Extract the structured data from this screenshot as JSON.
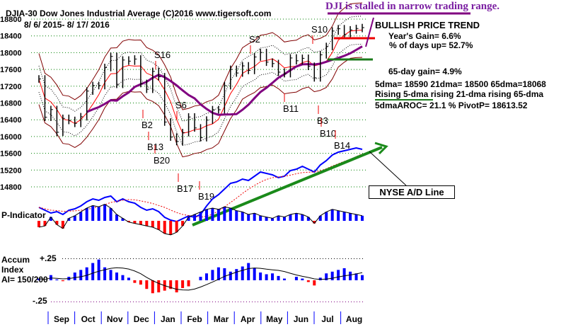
{
  "header": {
    "title": "DJIA-30  Dow Jones Industrial Average   (C)2016 www.tigersoft.com",
    "date_range": "8/ 6/ 2015- 8/ 17/ 2016",
    "headline": "DJI is stalled in narrow trading range."
  },
  "info": {
    "trend": "BULLISH PRICE TREND",
    "year_gain": "Year's Gain= 6.6%",
    "days_up": "% of days up= 52.7%",
    "gain65": "65-day gain= 4.9%",
    "dmas": "5dma= 18590 21dma= 18500 65dma=18068",
    "rising5": "Rising 5-dma",
    "rising_rest": " rising 21-dma  rising 65-dma",
    "aroc": "5dmaAROC= 21.1 %  PivotP= 18613.52"
  },
  "ad_label": "NYSE A/D Line",
  "panels": {
    "p_indicator": "P-Indicator",
    "accum1": "Accum",
    "accum2": "Index",
    "ai": "AI= 150/200",
    "plus": "+.25",
    "minus": "-.25"
  },
  "colors": {
    "grid": "#008000",
    "bars": "#000000",
    "ma21": "#ff0000",
    "ma65": "#800080",
    "band": "#800000",
    "ad": "#0000ff",
    "pos": "#0000ff",
    "neg": "#ff0000",
    "trend": "#1a8a1a"
  },
  "chart_data": {
    "type": "line",
    "title": "DJIA-30 Dow Jones Industrial Average",
    "ylim": [
      14800,
      18800
    ],
    "yticks": [
      18800,
      18400,
      18000,
      17600,
      17200,
      16800,
      16400,
      16000,
      15600,
      15200,
      14800
    ],
    "months": [
      "Sep",
      "Oct",
      "Nov",
      "Dec",
      "Jan",
      "Feb",
      "Mar",
      "Apr",
      "May",
      "Jun",
      "Jul",
      "Aug"
    ],
    "closes": [
      17373,
      16460,
      16643,
      16102,
      16433,
      16384,
      16315,
      16472,
      17084,
      17216,
      17215,
      17646,
      17910,
      17245,
      17824,
      17798,
      17848,
      17265,
      17128,
      17553,
      17425,
      16346,
      15988,
      15882,
      16093,
      16466,
      16205,
      15973,
      16392,
      16640,
      16639,
      17213,
      17602,
      17515,
      17685,
      17577,
      17897,
      18004,
      17774,
      17740,
      17535,
      17500,
      17873,
      17807,
      17865,
      17675,
      17400,
      17949,
      18147,
      18516,
      18570,
      18432,
      18543,
      18576,
      18597
    ],
    "ad_line": [
      22,
      18,
      14,
      16,
      12,
      18,
      20,
      24,
      30,
      34,
      32,
      36,
      38,
      30,
      34,
      30,
      28,
      22,
      18,
      20,
      16,
      8,
      4,
      2,
      6,
      10,
      8,
      12,
      24,
      34,
      40,
      48,
      56,
      58,
      62,
      60,
      66,
      72,
      70,
      68,
      64,
      66,
      74,
      76,
      80,
      76,
      72,
      82,
      88,
      96,
      100,
      102,
      104,
      106,
      104
    ],
    "p_indicator": [
      -10,
      -8,
      6,
      -6,
      -12,
      4,
      8,
      14,
      20,
      24,
      22,
      26,
      20,
      10,
      4,
      -2,
      -4,
      -6,
      -8,
      -10,
      -14,
      -20,
      -22,
      -18,
      -8,
      6,
      10,
      14,
      18,
      20,
      18,
      22,
      20,
      16,
      14,
      10,
      12,
      8,
      6,
      4,
      8,
      6,
      10,
      12,
      10,
      6,
      -4,
      8,
      14,
      18,
      16,
      14,
      12,
      10,
      8
    ],
    "accum_index": [
      0.02,
      0.0,
      0.06,
      0.01,
      -0.01,
      0.04,
      0.09,
      0.12,
      0.15,
      0.2,
      0.24,
      0.15,
      0.12,
      0.09,
      0.06,
      0.03,
      -0.03,
      -0.05,
      -0.1,
      -0.15,
      -0.14,
      -0.12,
      -0.1,
      -0.14,
      -0.09,
      -0.07,
      0.0,
      0.04,
      0.08,
      0.12,
      0.15,
      0.14,
      0.1,
      0.13,
      0.16,
      0.2,
      0.14,
      0.09,
      0.07,
      0.08,
      0.05,
      0.02,
      0.0,
      0.04,
      0.02,
      -0.02,
      -0.06,
      0.03,
      0.08,
      0.1,
      0.12,
      0.14,
      0.1,
      0.08,
      0.06
    ],
    "signals": [
      "S16",
      "S2",
      "S10",
      "S6",
      "B2",
      "B13",
      "B20",
      "B17",
      "B19",
      "B11",
      "B3",
      "B10",
      "B14"
    ]
  }
}
